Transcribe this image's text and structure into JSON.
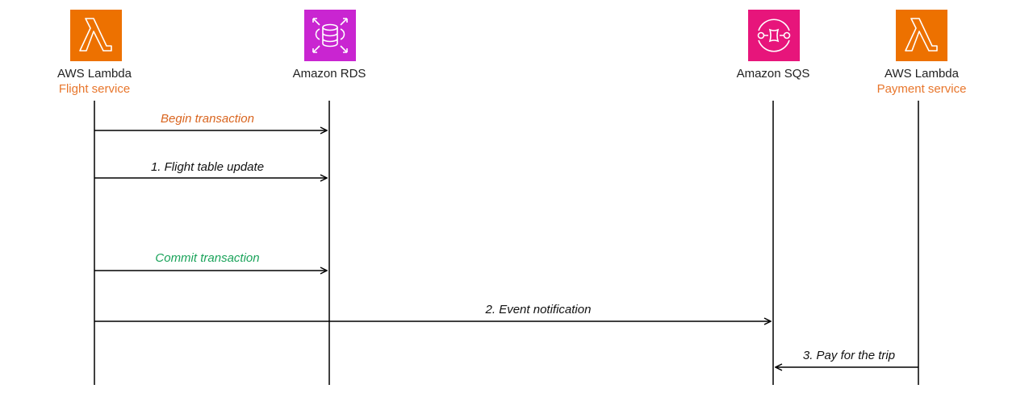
{
  "colors": {
    "lambda": "#ED7100",
    "rds": "#C925D1",
    "sqs": "#E7157B",
    "subtitle": "#E8762C",
    "begin": "#D9641E",
    "commit": "#1AA35A",
    "default": "#111111"
  },
  "participants": [
    {
      "icon": "lambda-icon",
      "name": "AWS Lambda",
      "subtitle": "Flight service"
    },
    {
      "icon": "rds-icon",
      "name": "Amazon RDS",
      "subtitle": ""
    },
    {
      "icon": "sqs-icon",
      "name": "Amazon SQS",
      "subtitle": ""
    },
    {
      "icon": "lambda-icon",
      "name": "AWS Lambda",
      "subtitle": "Payment service"
    }
  ],
  "messages": [
    {
      "from": "AWS Lambda (Flight service)",
      "to": "Amazon RDS",
      "label": "Begin transaction",
      "color": "begin"
    },
    {
      "from": "AWS Lambda (Flight service)",
      "to": "Amazon RDS",
      "label": "1. Flight table update",
      "color": "default"
    },
    {
      "from": "AWS Lambda (Flight service)",
      "to": "Amazon RDS",
      "label": "Commit transaction",
      "color": "commit"
    },
    {
      "from": "AWS Lambda (Flight service)",
      "to": "Amazon SQS",
      "label": "2. Event notification",
      "color": "default"
    },
    {
      "from": "AWS Lambda (Payment service)",
      "to": "Amazon SQS",
      "label": "3. Pay for the trip",
      "color": "default"
    }
  ]
}
